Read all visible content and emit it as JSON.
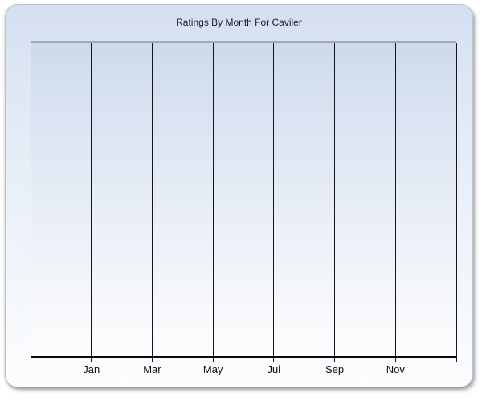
{
  "window": {
    "background_color": "#ffffff"
  },
  "panel": {
    "border_color": "#b9c3d4",
    "gradient_top": "#d5dff1",
    "gradient_bottom": "#fcfdfe"
  },
  "chart_data": {
    "type": "line",
    "title": "Ratings By Month For Caviler",
    "title_color": "#1c1c30",
    "categories": [
      "Jan",
      "Mar",
      "May",
      "Jul",
      "Sep",
      "Nov"
    ],
    "series": [],
    "xlabel": "",
    "ylabel": "",
    "legend": "none",
    "grid": "vertical-only",
    "num_vertical_gridlines": 8,
    "gridline_color": "#15151f",
    "axis_color": "#0a0a12",
    "tick_label_color": "#0c0c0c",
    "plot_gradient_top": "#cdd9ec",
    "plot_gradient_bottom": "#fdfdfe",
    "plot_top_border_color": "#a0aabf",
    "notes_visible_data_points": 0
  }
}
